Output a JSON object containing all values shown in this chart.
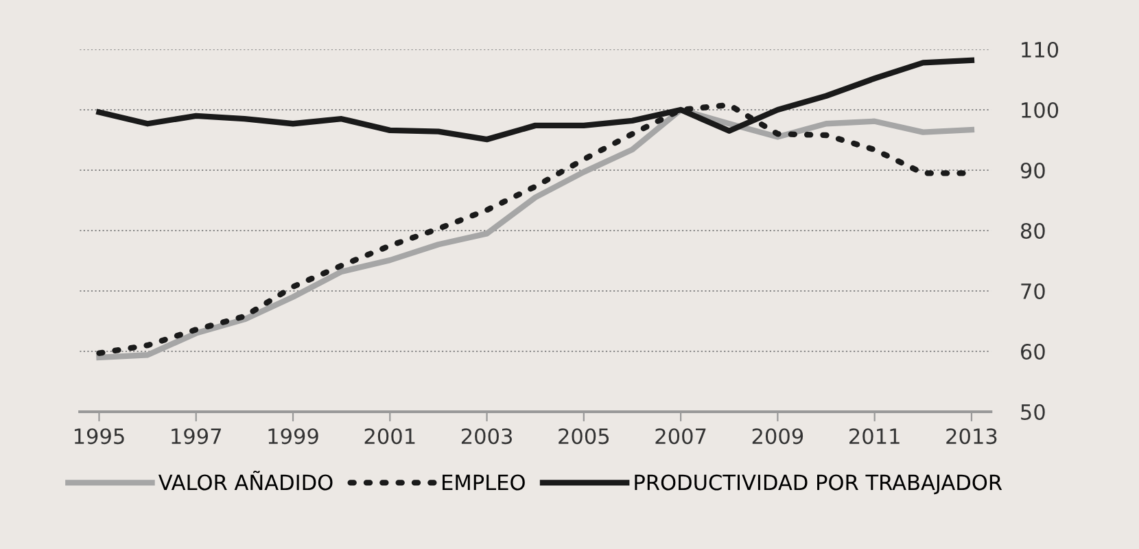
{
  "chart_data": {
    "type": "line",
    "x": [
      1995,
      1996,
      1997,
      1998,
      1999,
      2000,
      2001,
      2002,
      2003,
      2004,
      2005,
      2006,
      2007,
      2008,
      2009,
      2010,
      2011,
      2012,
      2013
    ],
    "series": [
      {
        "name": "VALOR AÑADIDO",
        "color": "#a6a6a6",
        "line_style": "solid",
        "values": [
          59,
          59.4,
          63,
          65.3,
          69,
          73.2,
          75.1,
          77.7,
          79.5,
          85.5,
          89.7,
          93.4,
          100,
          97.7,
          95.5,
          97.7,
          98.1,
          96.3,
          96.7
        ]
      },
      {
        "name": "EMPLEO",
        "color": "#1a1a1a",
        "line_style": "dotted",
        "values": [
          59.7,
          61,
          63.6,
          65.8,
          70.7,
          74.2,
          77.5,
          80.3,
          83.4,
          87.3,
          91.8,
          96,
          100,
          100.8,
          96,
          95.8,
          93.4,
          89.5,
          89.5
        ]
      },
      {
        "name": "PRODUCTIVIDAD POR TRABAJADOR",
        "color": "#1a1a1a",
        "line_style": "solid",
        "values": [
          99.6,
          97.7,
          99,
          98.5,
          97.7,
          98.5,
          96.6,
          96.4,
          95.1,
          97.4,
          97.4,
          98.2,
          100,
          96.5,
          100,
          102.3,
          105.2,
          107.8,
          108.2
        ]
      }
    ],
    "xlim": [
      1994.6,
      2013.4
    ],
    "xticks": [
      1995,
      1997,
      1999,
      2001,
      2003,
      2005,
      2007,
      2009,
      2011,
      2013
    ],
    "ylim": [
      50,
      110
    ],
    "yticks": [
      50,
      60,
      70,
      80,
      90,
      100,
      110
    ],
    "grid": "y",
    "legend": "bottom",
    "marker": "none"
  }
}
